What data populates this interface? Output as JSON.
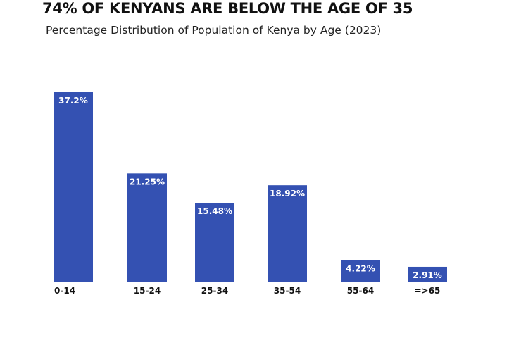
{
  "chart_data": {
    "type": "bar",
    "title": "74% OF KENYANS ARE BELOW THE AGE OF 35",
    "subtitle": "Percentage Distribution of Population of Kenya by Age (2023)",
    "xlabel": "",
    "ylabel": "",
    "ylim": [
      0,
      37.2
    ],
    "grid": false,
    "categories": [
      "0-14",
      "15-24",
      "25-34",
      "35-54",
      "55-64",
      "=>65"
    ],
    "values": [
      37.2,
      21.25,
      15.48,
      18.92,
      4.22,
      2.91
    ],
    "value_labels": [
      "37.2%",
      "21.25%",
      "15.48%",
      "18.92%",
      "4.22%",
      "2.91%"
    ],
    "bar_color": "#3451b2"
  }
}
